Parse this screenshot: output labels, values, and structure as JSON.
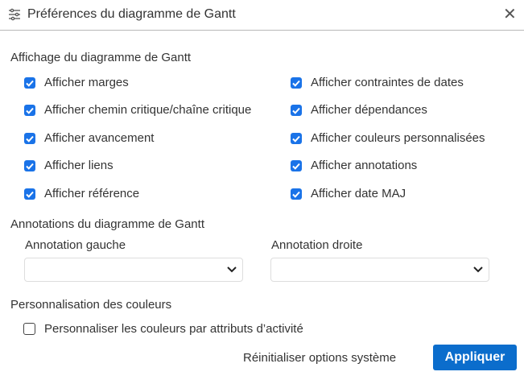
{
  "dialog": {
    "title": "Préférences du diagramme de Gantt",
    "title_icon": "sliders-icon",
    "close_icon": "close-icon"
  },
  "display": {
    "heading": "Affichage du diagramme de Gantt",
    "left": [
      {
        "label": "Afficher marges",
        "checked": true
      },
      {
        "label": "Afficher chemin critique/chaîne critique",
        "checked": true
      },
      {
        "label": "Afficher avancement",
        "checked": true
      },
      {
        "label": "Afficher liens",
        "checked": true
      },
      {
        "label": "Afficher référence",
        "checked": true
      }
    ],
    "right": [
      {
        "label": "Afficher contraintes de dates",
        "checked": true
      },
      {
        "label": "Afficher dépendances",
        "checked": true
      },
      {
        "label": "Afficher couleurs personnalisées",
        "checked": true
      },
      {
        "label": "Afficher annotations",
        "checked": true
      },
      {
        "label": "Afficher date MAJ",
        "checked": true
      }
    ]
  },
  "annotations": {
    "heading": "Annotations du diagramme de Gantt",
    "left_label": "Annotation gauche",
    "left_value": "",
    "right_label": "Annotation droite",
    "right_value": ""
  },
  "colors": {
    "heading": "Personnalisation des couleurs",
    "option": {
      "label": "Personnaliser les couleurs par attributs d’activité",
      "checked": false
    }
  },
  "footer": {
    "reset": "Réinitialiser options système",
    "apply": "Appliquer"
  },
  "theme": {
    "accent": "#0b6dcc",
    "checkbox": "#1a73e8"
  }
}
